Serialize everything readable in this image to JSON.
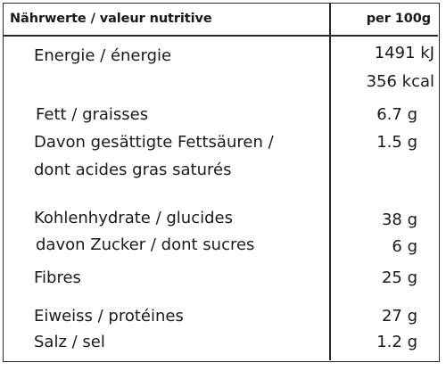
{
  "header": {
    "left": "Nährwerte / valeur nutritive",
    "right": "per 100g"
  },
  "rows": {
    "energy_label": "Energie / énergie",
    "energy_kj": "1491 kJ",
    "energy_kcal": "356 kcal",
    "fat_label": "Fett / graisses",
    "fat_value": "6.7 g",
    "sat_label_1": "Davon gesättigte Fettsäuren /",
    "sat_label_2": "dont acides gras saturés",
    "sat_value": "1.5 g",
    "carb_label": "Kohlenhydrate / glucides",
    "carb_value": "38 g",
    "sugar_label": "davon Zucker / dont sucres",
    "sugar_value": "6 g",
    "fibre_label": "Fibres",
    "fibre_value": "25 g",
    "protein_label": "Eiweiss / protéines",
    "protein_value": "27 g",
    "salt_label": "Salz / sel",
    "salt_value": "1.2 g"
  }
}
